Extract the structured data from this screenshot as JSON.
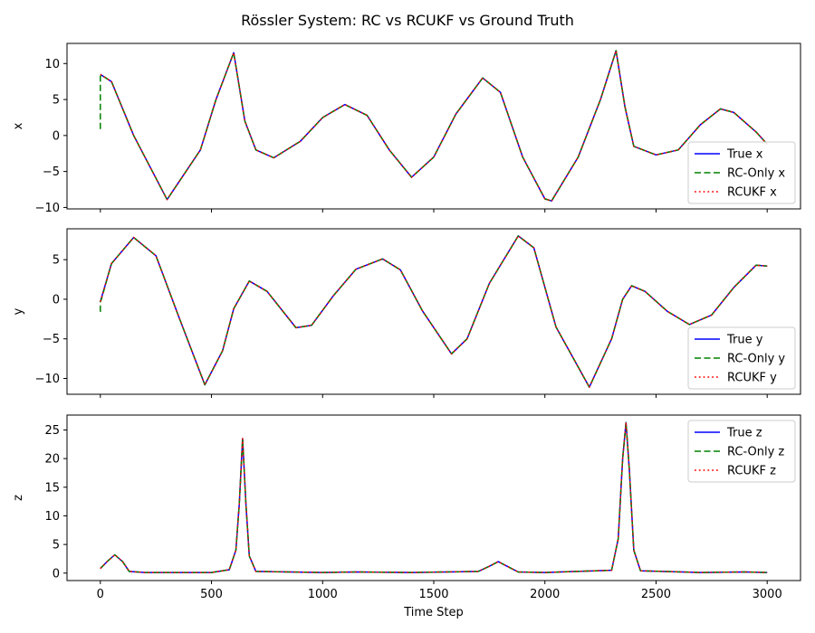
{
  "title": "Rössler System: RC vs RCUKF vs Ground Truth",
  "colors": {
    "true": "#0000ff",
    "rc_only": "#008000",
    "rcukf": "#ff0000"
  },
  "chart_data": [
    {
      "type": "line",
      "ylabel": "x",
      "xlabel": "",
      "xlim": [
        -150,
        3150
      ],
      "ylim": [
        -10.2,
        12.8
      ],
      "yticks": [
        -10,
        -5,
        0,
        5,
        10
      ],
      "xticks": [
        0,
        500,
        1000,
        1500,
        2000,
        2500,
        3000
      ],
      "show_xtick_labels": false,
      "legend_position": "lower-right",
      "series": [
        {
          "name": "True x",
          "style": "solid",
          "color": "#0000ff",
          "x": [
            0,
            50,
            150,
            300,
            450,
            520,
            600,
            650,
            700,
            780,
            900,
            1000,
            1100,
            1200,
            1300,
            1400,
            1500,
            1600,
            1720,
            1800,
            1900,
            2000,
            2030,
            2150,
            2250,
            2320,
            2360,
            2400,
            2500,
            2600,
            2700,
            2790,
            2850,
            2950,
            3000
          ],
          "y": [
            8.5,
            7.5,
            0,
            -8.9,
            -2,
            5,
            11.5,
            2,
            -2,
            -3.1,
            -0.8,
            2.5,
            4.3,
            2.8,
            -2,
            -5.8,
            -3,
            3,
            8,
            6,
            -3,
            -8.8,
            -9.1,
            -3,
            5,
            11.8,
            4,
            -1.5,
            -2.7,
            -2,
            1.5,
            3.7,
            3.2,
            0.5,
            -1.2
          ]
        },
        {
          "name": "RC-Only x",
          "style": "dashed",
          "color": "#008000",
          "x": [
            0,
            0,
            5,
            50,
            150,
            300,
            450,
            520,
            600,
            650,
            700,
            780,
            900,
            1000,
            1100,
            1200,
            1300,
            1400,
            1500,
            1600,
            1720,
            1800,
            1900,
            2000,
            2030,
            2150,
            2250,
            2320,
            2360,
            2400,
            2500,
            2600,
            2700,
            2790,
            2850,
            2950,
            3000
          ],
          "y": [
            0.9,
            8.2,
            8.4,
            7.5,
            0,
            -8.9,
            -2,
            5,
            11.5,
            2,
            -2,
            -3.1,
            -0.8,
            2.5,
            4.3,
            2.8,
            -2,
            -5.8,
            -3,
            3,
            8,
            6,
            -3,
            -8.8,
            -9.1,
            -3,
            5,
            11.8,
            4,
            -1.5,
            -2.7,
            -2,
            1.5,
            3.7,
            3.2,
            0.5,
            -1.2
          ]
        },
        {
          "name": "RCUKF x",
          "style": "dotted",
          "color": "#ff0000",
          "x": [
            0,
            50,
            150,
            300,
            450,
            520,
            600,
            650,
            700,
            780,
            900,
            1000,
            1100,
            1200,
            1300,
            1400,
            1500,
            1600,
            1720,
            1800,
            1900,
            2000,
            2030,
            2150,
            2250,
            2320,
            2360,
            2400,
            2500,
            2600,
            2700,
            2790,
            2850,
            2950,
            3000
          ],
          "y": [
            8.5,
            7.5,
            0,
            -8.9,
            -2,
            5,
            11.5,
            2,
            -2,
            -3.1,
            -0.8,
            2.5,
            4.3,
            2.8,
            -2,
            -5.8,
            -3,
            3,
            8,
            6,
            -3,
            -8.8,
            -9.1,
            -3,
            5,
            11.8,
            4,
            -1.5,
            -2.7,
            -2,
            1.5,
            3.7,
            3.2,
            0.5,
            -1.2
          ]
        }
      ]
    },
    {
      "type": "line",
      "ylabel": "y",
      "xlabel": "",
      "xlim": [
        -150,
        3150
      ],
      "ylim": [
        -12,
        8.9
      ],
      "yticks": [
        -10,
        -5,
        0,
        5
      ],
      "xticks": [
        0,
        500,
        1000,
        1500,
        2000,
        2500,
        3000
      ],
      "show_xtick_labels": false,
      "legend_position": "lower-right",
      "series": [
        {
          "name": "True y",
          "style": "solid",
          "color": "#0000ff",
          "x": [
            0,
            50,
            150,
            250,
            350,
            470,
            550,
            600,
            670,
            750,
            880,
            950,
            1050,
            1150,
            1270,
            1350,
            1450,
            1580,
            1650,
            1750,
            1880,
            1950,
            2050,
            2200,
            2300,
            2350,
            2390,
            2450,
            2550,
            2650,
            2750,
            2850,
            2950,
            3000
          ],
          "y": [
            -0.3,
            4.5,
            7.8,
            5.5,
            -2,
            -10.8,
            -6.5,
            -1.2,
            2.3,
            1,
            -3.6,
            -3.3,
            0.5,
            3.8,
            5.1,
            3.7,
            -1.5,
            -6.9,
            -5,
            2,
            8,
            6.5,
            -3.5,
            -11.1,
            -5,
            0,
            1.7,
            1,
            -1.5,
            -3.2,
            -2,
            1.5,
            4.3,
            4.2
          ]
        },
        {
          "name": "RC-Only y",
          "style": "dashed",
          "color": "#008000",
          "x": [
            0,
            0,
            5,
            50,
            150,
            250,
            350,
            470,
            550,
            600,
            670,
            750,
            880,
            950,
            1050,
            1150,
            1270,
            1350,
            1450,
            1580,
            1650,
            1750,
            1880,
            1950,
            2050,
            2200,
            2300,
            2350,
            2390,
            2450,
            2550,
            2650,
            2750,
            2850,
            2950,
            3000
          ],
          "y": [
            -1.6,
            -0.3,
            0,
            4.5,
            7.8,
            5.5,
            -2,
            -10.8,
            -6.5,
            -1.2,
            2.3,
            1,
            -3.6,
            -3.3,
            0.5,
            3.8,
            5.1,
            3.7,
            -1.5,
            -6.9,
            -5,
            2,
            8,
            6.5,
            -3.5,
            -11.1,
            -5,
            0,
            1.7,
            1,
            -1.5,
            -3.2,
            -2,
            1.5,
            4.3,
            4.2
          ]
        },
        {
          "name": "RCUKF y",
          "style": "dotted",
          "color": "#ff0000",
          "x": [
            0,
            50,
            150,
            250,
            350,
            470,
            550,
            600,
            670,
            750,
            880,
            950,
            1050,
            1150,
            1270,
            1350,
            1450,
            1580,
            1650,
            1750,
            1880,
            1950,
            2050,
            2200,
            2300,
            2350,
            2390,
            2450,
            2550,
            2650,
            2750,
            2850,
            2950,
            3000
          ],
          "y": [
            -0.3,
            4.5,
            7.8,
            5.5,
            -2,
            -10.8,
            -6.5,
            -1.2,
            2.3,
            1,
            -3.6,
            -3.3,
            0.5,
            3.8,
            5.1,
            3.7,
            -1.5,
            -6.9,
            -5,
            2,
            8,
            6.5,
            -3.5,
            -11.1,
            -5,
            0,
            1.7,
            1,
            -1.5,
            -3.2,
            -2,
            1.5,
            4.3,
            4.2
          ]
        }
      ]
    },
    {
      "type": "line",
      "ylabel": "z",
      "xlabel": "Time Step",
      "xlim": [
        -150,
        3150
      ],
      "ylim": [
        -1.3,
        27.6
      ],
      "yticks": [
        0,
        5,
        10,
        15,
        20,
        25
      ],
      "xticks": [
        0,
        500,
        1000,
        1500,
        2000,
        2500,
        3000
      ],
      "show_xtick_labels": true,
      "legend_position": "upper-right",
      "series": [
        {
          "name": "True z",
          "style": "solid",
          "color": "#0000ff",
          "x": [
            0,
            30,
            65,
            100,
            130,
            200,
            500,
            580,
            610,
            625,
            640,
            655,
            670,
            700,
            1000,
            1150,
            1400,
            1700,
            1750,
            1790,
            1830,
            1880,
            2000,
            2300,
            2330,
            2350,
            2365,
            2380,
            2400,
            2430,
            2700,
            2900,
            3000
          ],
          "y": [
            0.8,
            2,
            3.2,
            2,
            0.3,
            0.1,
            0.1,
            0.6,
            4,
            12,
            23.5,
            12,
            3,
            0.3,
            0.1,
            0.2,
            0.1,
            0.3,
            1.2,
            2,
            1.2,
            0.2,
            0.1,
            0.5,
            6,
            20,
            26.3,
            18,
            4,
            0.4,
            0.1,
            0.2,
            0.1
          ]
        },
        {
          "name": "RC-Only z",
          "style": "dashed",
          "color": "#008000",
          "x": [
            0,
            30,
            65,
            100,
            130,
            200,
            500,
            580,
            610,
            625,
            640,
            655,
            670,
            700,
            1000,
            1150,
            1400,
            1700,
            1750,
            1790,
            1830,
            1880,
            2000,
            2300,
            2330,
            2350,
            2365,
            2380,
            2400,
            2430,
            2700,
            2900,
            3000
          ],
          "y": [
            0.8,
            2,
            3.2,
            2,
            0.3,
            0.1,
            0.1,
            0.6,
            4,
            12,
            23.5,
            12,
            3,
            0.3,
            0.1,
            0.2,
            0.1,
            0.3,
            1.2,
            2,
            1.2,
            0.2,
            0.1,
            0.5,
            6,
            20,
            26.3,
            18,
            4,
            0.4,
            0.1,
            0.2,
            0.1
          ]
        },
        {
          "name": "RCUKF z",
          "style": "dotted",
          "color": "#ff0000",
          "x": [
            0,
            30,
            65,
            100,
            130,
            200,
            500,
            580,
            610,
            625,
            640,
            655,
            670,
            700,
            1000,
            1150,
            1400,
            1700,
            1750,
            1790,
            1830,
            1880,
            2000,
            2300,
            2330,
            2350,
            2365,
            2380,
            2400,
            2430,
            2700,
            2900,
            3000
          ],
          "y": [
            0.8,
            2,
            3.2,
            2,
            0.3,
            0.1,
            0.1,
            0.6,
            4,
            12,
            23.5,
            12,
            3,
            0.3,
            0.1,
            0.2,
            0.1,
            0.3,
            1.2,
            2,
            1.2,
            0.2,
            0.1,
            0.5,
            6,
            20,
            26.3,
            18,
            4,
            0.4,
            0.1,
            0.2,
            0.1
          ]
        }
      ]
    }
  ]
}
